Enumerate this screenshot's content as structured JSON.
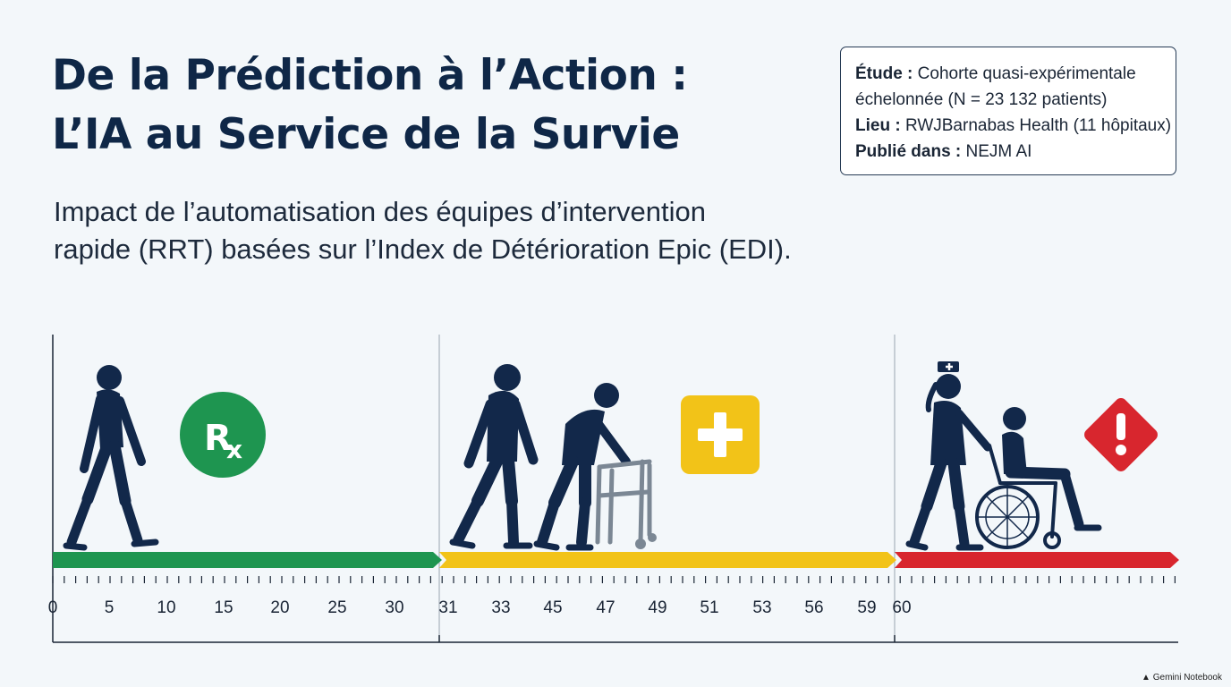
{
  "title": {
    "line1": "De la Prédiction à l’Action :",
    "line2": "L’IA au Service de la Survie"
  },
  "subtitle": {
    "line1": "Impact de l’automatisation des équipes d’intervention",
    "line2": "rapide (RRT) basées sur l’Index de Détérioration Epic (EDI)."
  },
  "study": {
    "etude_label": "Étude :",
    "etude_value_1": "Cohorte quasi-expérimentale",
    "etude_value_2": "échelonnée (N = 23 132 patients)",
    "lieu_label": "Lieu :",
    "lieu_value": "RWJBarnabas Health (11 hôpitaux)",
    "publie_label": "Publié dans :",
    "publie_value": "NEJM AI"
  },
  "scale": {
    "segments": [
      {
        "zone": "low",
        "color": "#1e9550",
        "icon": "rx-icon",
        "figures": [
          "walking-person-icon"
        ]
      },
      {
        "zone": "medium",
        "color": "#f2c318",
        "icon": "plus-icon",
        "figures": [
          "elderly-walking-person-icon",
          "person-with-walker-icon"
        ]
      },
      {
        "zone": "high",
        "color": "#d8262e",
        "icon": "warning-icon",
        "figures": [
          "nurse-pushing-wheelchair-icon"
        ]
      }
    ],
    "tick_labels": [
      "0",
      "5",
      "10",
      "15",
      "20",
      "25",
      "30",
      "31",
      "33",
      "45",
      "47",
      "49",
      "51",
      "53",
      "56",
      "59",
      "60"
    ]
  },
  "footer": {
    "brand": "Gemini Notebook"
  }
}
